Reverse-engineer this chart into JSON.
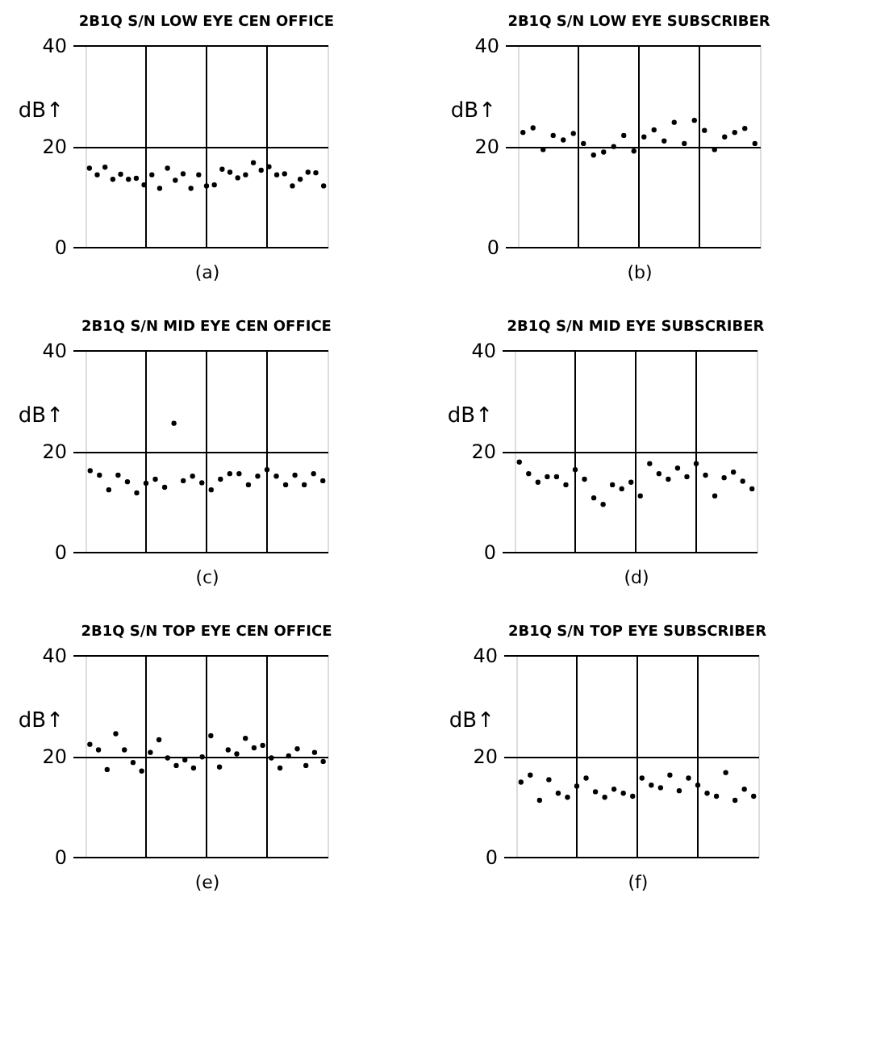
{
  "chart_data": [
    {
      "type": "scatter",
      "title": "2B1Q S/N LOW EYE CEN OFFICE",
      "xlabel": "(a)",
      "ylabel": "dB↑",
      "categories": [
        null,
        null,
        null,
        null,
        null,
        null,
        null,
        null,
        null,
        null,
        null,
        null,
        null,
        null,
        null,
        null,
        null,
        null,
        null,
        null,
        null,
        null,
        null,
        null,
        null,
        null,
        null,
        null,
        null,
        null,
        null
      ],
      "ylim": [
        0,
        40
      ],
      "yticks": [
        0,
        20,
        40
      ],
      "grid": true,
      "tick_labels": "y",
      "marker": "circle",
      "series": [
        {
          "color": "#000000",
          "values": [
            15.6,
            14.3,
            15.8,
            13.4,
            14.4,
            13.4,
            13.6,
            12.3,
            14.3,
            11.6,
            15.6,
            13.2,
            14.5,
            11.6,
            14.3,
            12.1,
            12.3,
            15.4,
            14.8,
            13.7,
            14.3,
            16.7,
            15.2,
            15.9,
            14.3,
            14.5,
            12.1,
            13.4,
            14.8,
            14.7,
            12.1
          ]
        }
      ]
    },
    {
      "type": "scatter",
      "title": "2B1Q S/N LOW EYE SUBSCRIBER",
      "xlabel": "(b)",
      "ylabel": "dB↑",
      "categories": [
        null,
        null,
        null,
        null,
        null,
        null,
        null,
        null,
        null,
        null,
        null,
        null,
        null,
        null,
        null,
        null,
        null,
        null,
        null,
        null,
        null,
        null,
        null,
        null
      ],
      "ylim": [
        0,
        40
      ],
      "yticks": [
        0,
        20,
        40
      ],
      "grid": true,
      "tick_labels": "y",
      "marker": "circle",
      "series": [
        {
          "color": "#000000",
          "values": [
            22.7,
            23.6,
            19.3,
            22.1,
            21.2,
            22.5,
            20.5,
            18.2,
            18.8,
            19.9,
            22.1,
            19.0,
            21.8,
            23.2,
            21.0,
            24.7,
            20.5,
            25.1,
            23.1,
            19.3,
            21.8,
            22.7,
            23.5,
            20.5
          ]
        }
      ]
    },
    {
      "type": "scatter",
      "title": "2B1Q S/N MID EYE CEN OFFICE",
      "xlabel": "(c)",
      "ylabel": "dB↑",
      "categories": [
        null,
        null,
        null,
        null,
        null,
        null,
        null,
        null,
        null,
        null,
        null,
        null,
        null,
        null,
        null,
        null,
        null,
        null,
        null,
        null,
        null,
        null,
        null,
        null,
        null,
        null
      ],
      "ylim": [
        0,
        40
      ],
      "yticks": [
        0,
        20,
        40
      ],
      "grid": true,
      "tick_labels": "y",
      "marker": "circle",
      "series": [
        {
          "color": "#000000",
          "values": [
            16.1,
            15.2,
            12.3,
            15.2,
            13.9,
            11.7,
            13.6,
            14.4,
            12.8,
            25.5,
            14.1,
            15.0,
            13.7,
            12.3,
            14.4,
            15.5,
            15.5,
            13.3,
            15.0,
            16.3,
            15.0,
            13.3,
            15.2,
            13.3,
            15.5,
            14.1
          ]
        }
      ]
    },
    {
      "type": "scatter",
      "title": "2B1Q S/N MID EYE SUBSCRIBER",
      "xlabel": "(d)",
      "ylabel": "dB↑",
      "categories": [
        null,
        null,
        null,
        null,
        null,
        null,
        null,
        null,
        null,
        null,
        null,
        null,
        null,
        null,
        null,
        null,
        null,
        null,
        null,
        null,
        null,
        null,
        null,
        null,
        null,
        null
      ],
      "ylim": [
        0,
        40
      ],
      "yticks": [
        0,
        20,
        40
      ],
      "grid": true,
      "tick_labels": "y",
      "marker": "circle",
      "series": [
        {
          "color": "#000000",
          "values": [
            17.8,
            15.5,
            13.8,
            14.9,
            14.9,
            13.3,
            16.3,
            14.4,
            10.7,
            9.4,
            13.3,
            12.5,
            13.8,
            11.1,
            17.5,
            15.5,
            14.4,
            16.6,
            14.9,
            17.5,
            15.2,
            11.1,
            14.7,
            15.8,
            14.0,
            12.5
          ]
        }
      ]
    },
    {
      "type": "scatter",
      "title": "2B1Q S/N TOP EYE CEN OFFICE",
      "xlabel": "(e)",
      "ylabel": "dB↑",
      "categories": [
        null,
        null,
        null,
        null,
        null,
        null,
        null,
        null,
        null,
        null,
        null,
        null,
        null,
        null,
        null,
        null,
        null,
        null,
        null,
        null,
        null,
        null,
        null,
        null,
        null,
        null,
        null,
        null
      ],
      "ylim": [
        0,
        40
      ],
      "yticks": [
        0,
        20,
        40
      ],
      "grid": true,
      "tick_labels": "y",
      "marker": "circle",
      "series": [
        {
          "color": "#000000",
          "values": [
            22.3,
            21.2,
            17.3,
            24.4,
            21.2,
            18.7,
            17.0,
            20.7,
            23.2,
            19.6,
            18.1,
            19.2,
            17.6,
            19.8,
            24.0,
            17.8,
            21.2,
            20.4,
            23.5,
            21.6,
            22.1,
            19.6,
            17.6,
            20.0,
            21.4,
            18.1,
            20.7,
            18.9
          ]
        }
      ]
    },
    {
      "type": "scatter",
      "title": "2B1Q S/N TOP EYE SUBSCRIBER",
      "xlabel": "(f)",
      "ylabel": "dB↑",
      "categories": [
        null,
        null,
        null,
        null,
        null,
        null,
        null,
        null,
        null,
        null,
        null,
        null,
        null,
        null,
        null,
        null,
        null,
        null,
        null,
        null,
        null,
        null,
        null,
        null,
        null,
        null
      ],
      "ylim": [
        0,
        40
      ],
      "yticks": [
        0,
        20,
        40
      ],
      "grid": true,
      "tick_labels": "y",
      "marker": "circle",
      "series": [
        {
          "color": "#000000",
          "values": [
            14.8,
            16.2,
            11.2,
            15.3,
            12.6,
            11.8,
            14.0,
            15.6,
            12.9,
            11.8,
            13.4,
            12.6,
            12.0,
            15.6,
            14.2,
            13.7,
            16.2,
            13.1,
            15.6,
            14.2,
            12.6,
            12.0,
            16.7,
            11.2,
            13.4,
            12.0
          ]
        }
      ]
    }
  ]
}
